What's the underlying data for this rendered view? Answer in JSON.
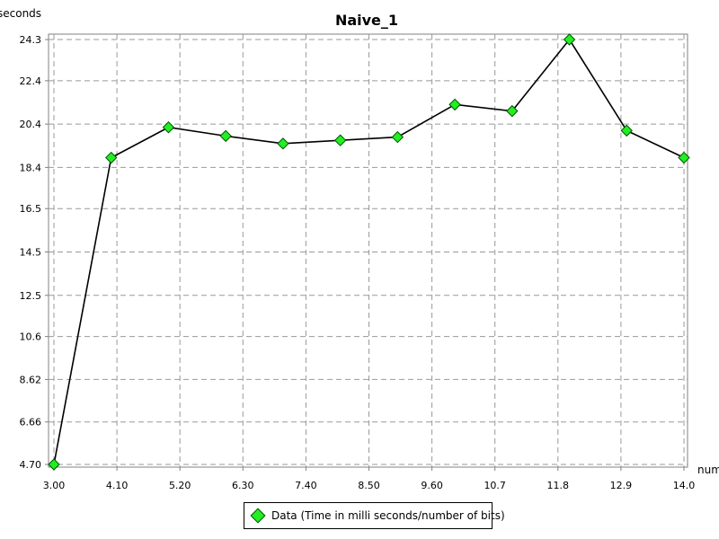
{
  "chart_data": {
    "type": "line",
    "title": "Naive_1",
    "ylabel": "seconds",
    "xlabel": "num",
    "x": [
      3,
      4,
      5,
      6,
      7,
      8,
      9,
      10,
      11,
      12,
      13,
      14
    ],
    "series": [
      {
        "name": "Data (Time in milli seconds/number of bits)",
        "values": [
          4.7,
          18.85,
          20.25,
          19.85,
          19.5,
          19.65,
          19.8,
          21.3,
          21.0,
          24.3,
          20.1,
          18.85
        ]
      }
    ],
    "xlim": [
      3,
      14
    ],
    "ylim": [
      4.7,
      24.3
    ],
    "x_ticks": [
      "3.00",
      "4.10",
      "5.20",
      "6.30",
      "7.40",
      "8.50",
      "9.60",
      "10.7",
      "11.8",
      "12.9",
      "14.0"
    ],
    "y_ticks": [
      "24.3",
      "22.4",
      "20.4",
      "18.4",
      "16.5",
      "14.5",
      "12.5",
      "10.6",
      "8.62",
      "6.66",
      "4.70"
    ],
    "grid": true,
    "legend_position": "bottom-center",
    "colors": {
      "marker_fill": "#22ee22",
      "marker_stroke": "#005500",
      "line": "#000000",
      "grid": "#999999"
    }
  }
}
